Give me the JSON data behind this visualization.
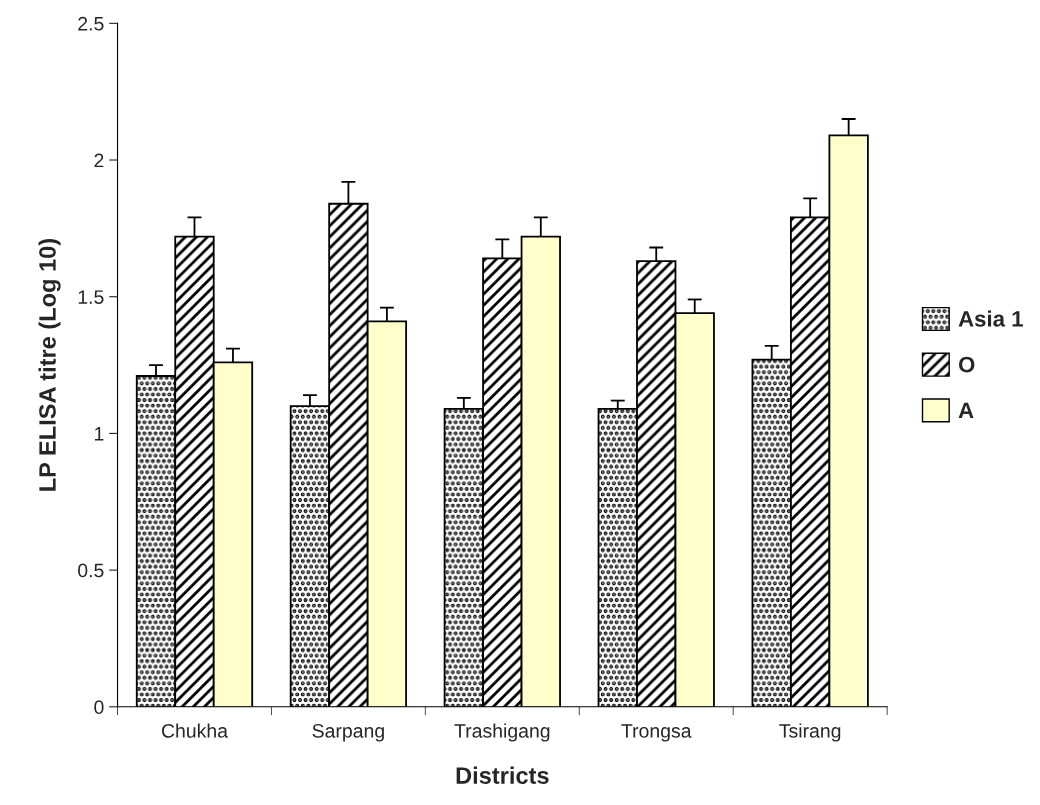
{
  "chart_data": {
    "type": "bar",
    "xlabel": "Districts",
    "ylabel": "LP ELISA titre (Log 10)",
    "categories": [
      "Chukha",
      "Sarpang",
      "Trashigang",
      "Trongsa",
      "Tsirang"
    ],
    "series": [
      {
        "name": "Asia 1",
        "color": "#000000",
        "values": [
          1.21,
          1.1,
          1.09,
          1.09,
          1.27
        ],
        "errors": [
          0.04,
          0.04,
          0.04,
          0.03,
          0.05
        ]
      },
      {
        "name": "O",
        "color": "#000000",
        "values": [
          1.72,
          1.84,
          1.64,
          1.63,
          1.79
        ],
        "errors": [
          0.07,
          0.08,
          0.07,
          0.05,
          0.07
        ]
      },
      {
        "name": "A",
        "color": "#ffffcc",
        "values": [
          1.26,
          1.41,
          1.72,
          1.44,
          2.09
        ],
        "errors": [
          0.05,
          0.05,
          0.07,
          0.05,
          0.06
        ]
      }
    ],
    "ylim": [
      0,
      2.5
    ],
    "yticks": [
      0,
      0.5,
      1,
      1.5,
      2,
      2.5
    ],
    "grid": false,
    "legend": "right"
  }
}
